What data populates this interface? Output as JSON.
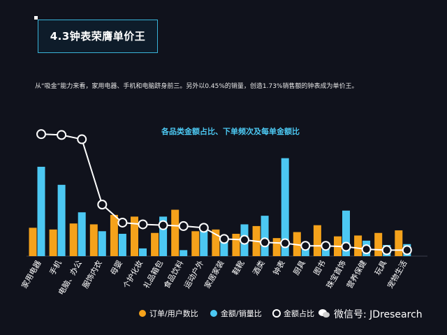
{
  "header": {
    "title": "4.3钟表荣膺单价王",
    "description": "从“吸金”能力来看，家用电器、手机和电脑跻身前三。另外以0.45%的销量，创造1.73%销售额的钟表成为单价王。"
  },
  "watermark": {
    "text": "微信号: JDresearch"
  },
  "colors": {
    "background": "#10121c",
    "orange": "#f5a21b",
    "blue": "#4cc8f2",
    "line": "#ffffff",
    "title_accent": "#39b3d8"
  },
  "chart_data": {
    "type": "bar",
    "title": "各品类金额占比、下单频次及每单金额比",
    "categories": [
      "家用电器",
      "手机",
      "电脑、办公",
      "服饰内衣",
      "母婴",
      "个护化妆",
      "礼品箱包",
      "食品饮料",
      "运动户外",
      "家居家装",
      "鞋靴",
      "酒类",
      "钟表",
      "厨具",
      "图书",
      "珠宝首饰",
      "营养保健",
      "玩具",
      "宠物生活"
    ],
    "series": [
      {
        "name": "订单/用户数比",
        "type": "bar",
        "color": "#f5a21b",
        "values": [
          0.33,
          0.31,
          0.38,
          0.37,
          0.48,
          0.46,
          0.27,
          0.54,
          0.29,
          0.31,
          0.26,
          0.35,
          0.21,
          0.28,
          0.36,
          0.23,
          0.24,
          0.27,
          0.3
        ]
      },
      {
        "name": "金额/销量比",
        "type": "bar",
        "color": "#4cc8f2",
        "values": [
          1.04,
          0.83,
          0.51,
          0.29,
          0.26,
          0.09,
          0.46,
          0.07,
          0.37,
          0.19,
          0.37,
          0.47,
          1.14,
          0.15,
          0.08,
          0.53,
          0.18,
          0.13,
          0.14
        ]
      },
      {
        "name": "金额占比",
        "type": "line",
        "color": "#ffffff",
        "values": [
          1.42,
          1.41,
          1.36,
          0.6,
          0.39,
          0.37,
          0.36,
          0.35,
          0.33,
          0.2,
          0.19,
          0.16,
          0.15,
          0.12,
          0.12,
          0.11,
          0.08,
          0.07,
          0.07
        ]
      }
    ],
    "ylim": [
      0,
      1.6
    ],
    "grid": false,
    "legend_position": "bottom"
  }
}
